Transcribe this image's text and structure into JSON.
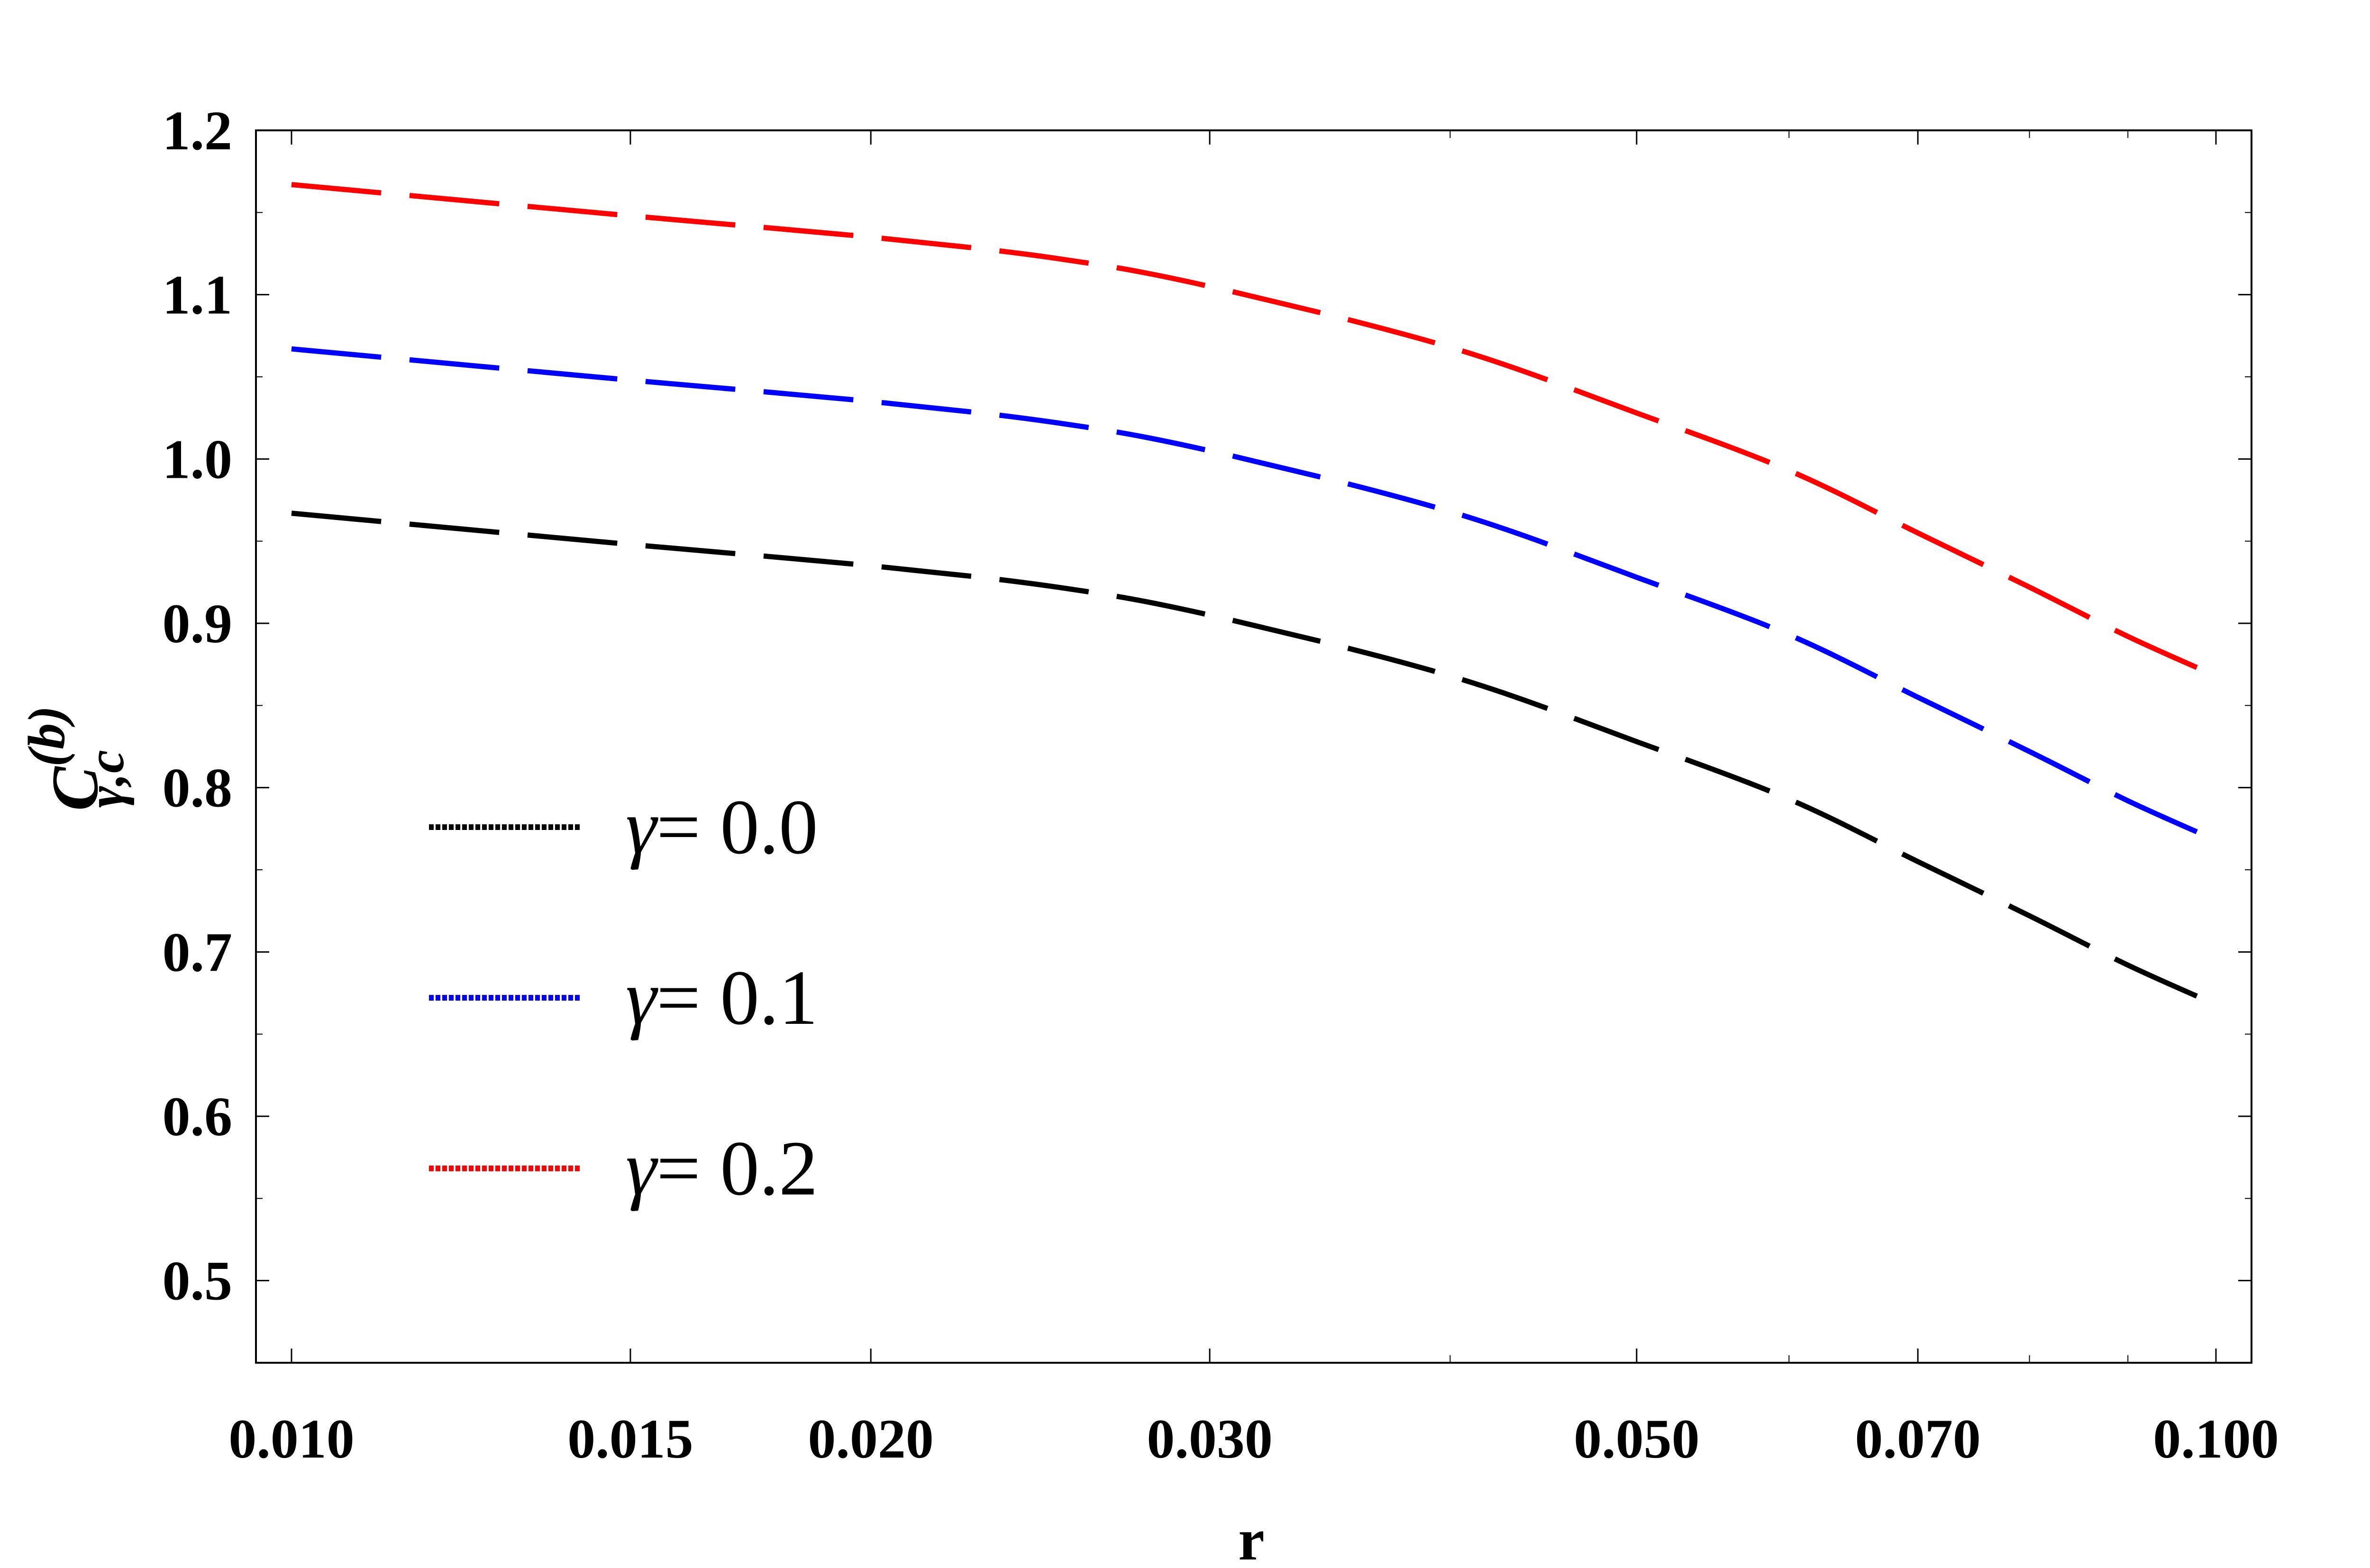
{
  "chart_data": {
    "type": "line",
    "title": "",
    "xlabel": "r",
    "ylabel": {
      "base": "C",
      "superscript": "(b)",
      "subscript": "γ,c"
    },
    "x_scale": "log",
    "xlim": [
      0.01,
      0.1
    ],
    "ylim": [
      0.45,
      1.2
    ],
    "x_ticks": [
      0.01,
      0.015,
      0.02,
      0.03,
      0.05,
      0.07,
      0.1
    ],
    "x_tick_labels": [
      "0.010",
      "0.015",
      "0.020",
      "0.030",
      "0.050",
      "0.070",
      "0.100"
    ],
    "y_ticks": [
      0.5,
      0.6,
      0.7,
      0.8,
      0.9,
      1.0,
      1.1,
      1.2
    ],
    "y_tick_labels": [
      "0.5",
      "0.6",
      "0.7",
      "0.8",
      "0.9",
      "1.0",
      "1.1",
      "1.2"
    ],
    "grid": false,
    "legend_position": "lower-left",
    "x": [
      0.01,
      0.015,
      0.02,
      0.025,
      0.03,
      0.04,
      0.05,
      0.06,
      0.07,
      0.08,
      0.09,
      0.1
    ],
    "series": [
      {
        "name": "γ= 0.0",
        "legend_symbol": "γ",
        "legend_value": "= 0.0",
        "color": "#000000",
        "values": [
          0.967,
          0.948,
          0.935,
          0.922,
          0.905,
          0.868,
          0.828,
          0.793,
          0.755,
          0.722,
          0.692,
          0.668
        ]
      },
      {
        "name": "γ= 0.1",
        "legend_symbol": "γ",
        "legend_value": "= 0.1",
        "color": "#0000ff",
        "values": [
          1.067,
          1.048,
          1.035,
          1.022,
          1.005,
          0.968,
          0.928,
          0.893,
          0.855,
          0.822,
          0.792,
          0.768
        ]
      },
      {
        "name": "γ= 0.2",
        "legend_symbol": "γ",
        "legend_value": "= 0.2",
        "color": "#ff0000",
        "values": [
          1.167,
          1.148,
          1.135,
          1.122,
          1.105,
          1.068,
          1.028,
          0.993,
          0.955,
          0.922,
          0.892,
          0.868
        ]
      }
    ]
  }
}
